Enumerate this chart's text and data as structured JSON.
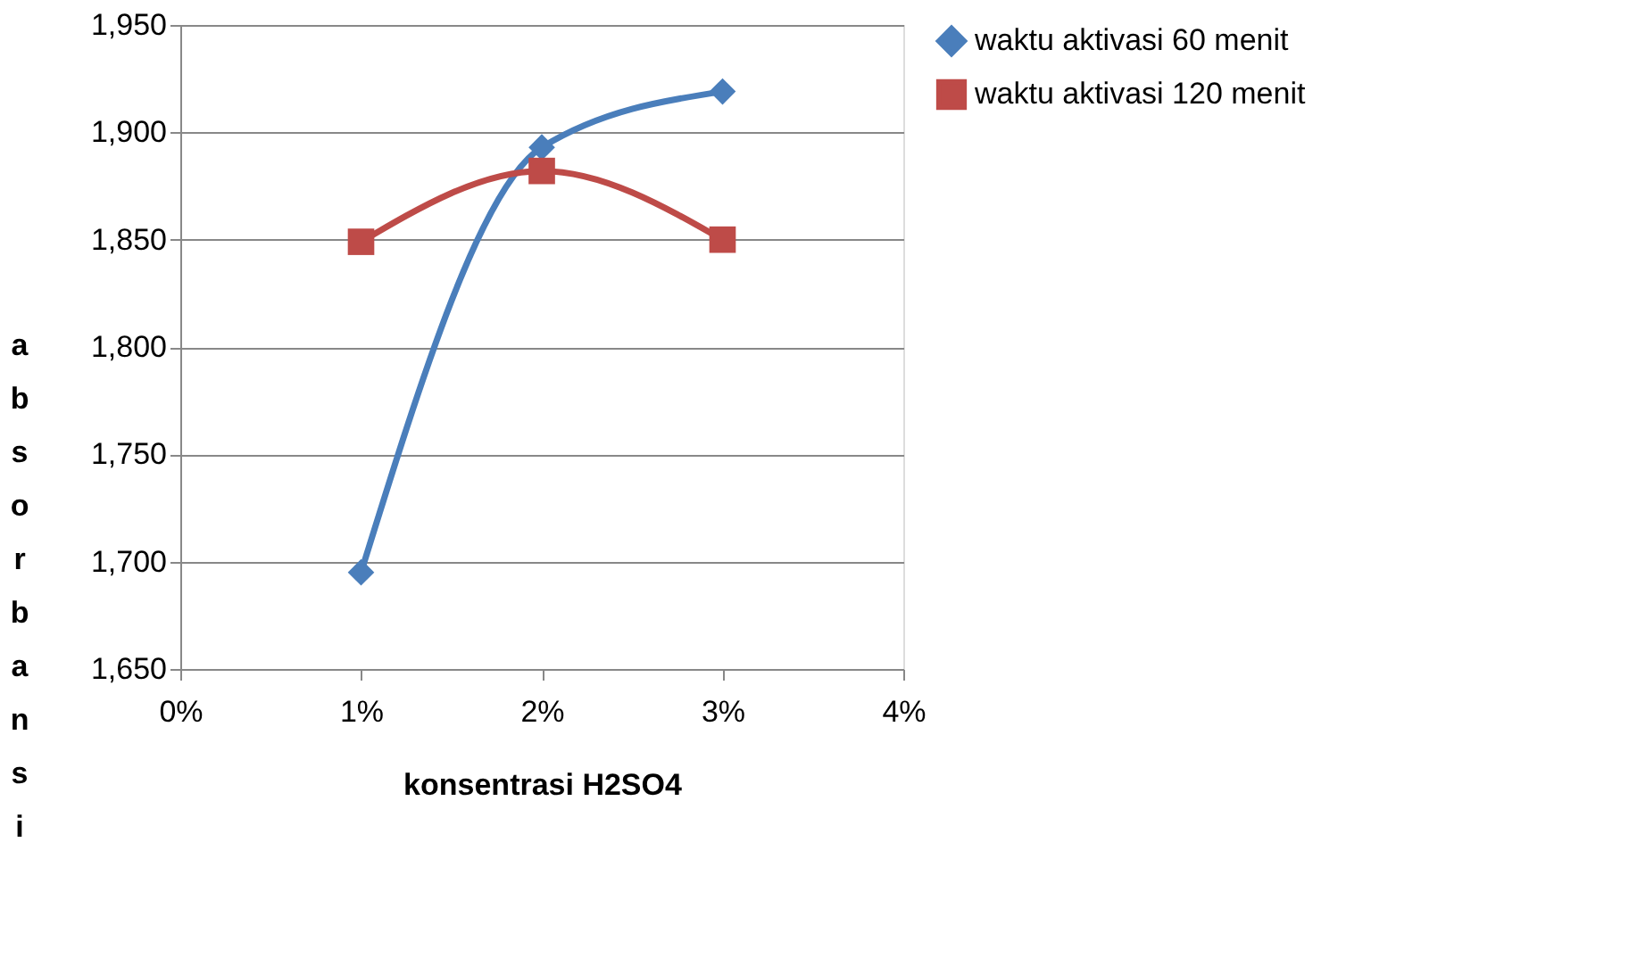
{
  "chart_data": {
    "type": "line",
    "xlabel": "konsentrasi H2SO4",
    "ylabel": "absorbansi",
    "x": [
      1,
      2,
      3
    ],
    "series": [
      {
        "name": "waktu aktivasi 60 menit",
        "color": "#4a7ebb",
        "values": [
          1695,
          1893,
          1919
        ],
        "marker": "diamond"
      },
      {
        "name": "waktu aktivasi 120 menit",
        "color": "#be4b48",
        "values": [
          1849,
          1882,
          1850
        ],
        "marker": "square"
      }
    ],
    "xlim": [
      0,
      4
    ],
    "xticks": [
      {
        "value": 0,
        "label": "0%"
      },
      {
        "value": 1,
        "label": "1%"
      },
      {
        "value": 2,
        "label": "2%"
      },
      {
        "value": 3,
        "label": "3%"
      },
      {
        "value": 4,
        "label": "4%"
      }
    ],
    "ylim": [
      1650,
      1950
    ],
    "yticks": [
      {
        "value": 1650,
        "label": "1,650"
      },
      {
        "value": 1700,
        "label": "1,700"
      },
      {
        "value": 1750,
        "label": "1,750"
      },
      {
        "value": 1800,
        "label": "1,800"
      },
      {
        "value": 1850,
        "label": "1,850"
      },
      {
        "value": 1900,
        "label": "1,900"
      },
      {
        "value": 1950,
        "label": "1,950"
      }
    ],
    "grid": "y",
    "legend": "right",
    "line_style": "solid"
  }
}
